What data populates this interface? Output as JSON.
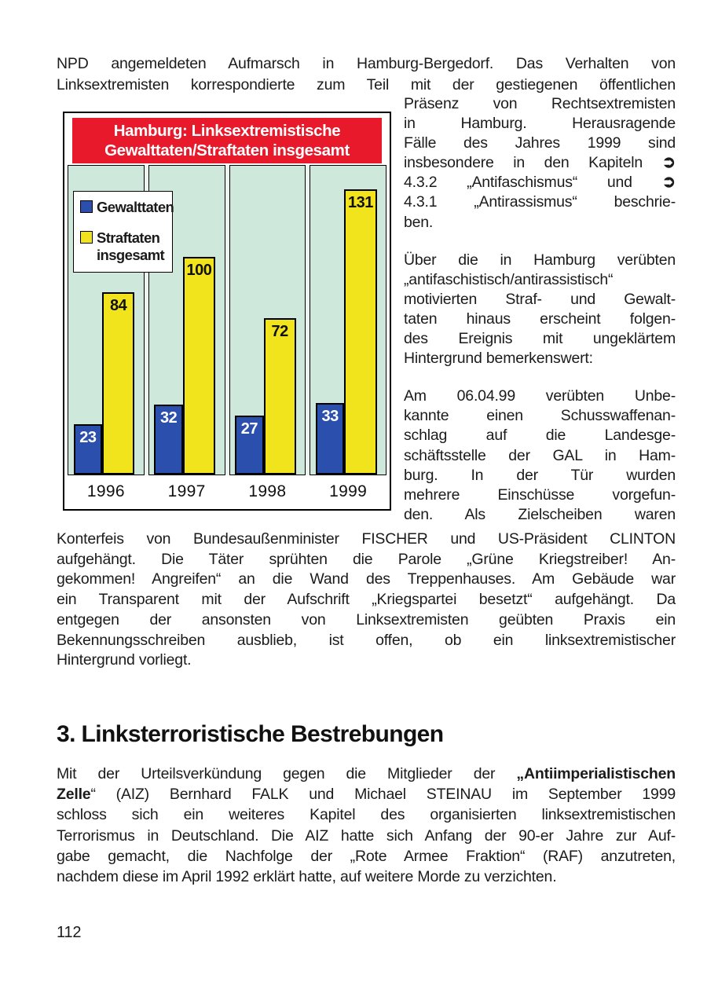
{
  "page": {
    "number": "112"
  },
  "intro": {
    "justify_last": true,
    "lines": [
      "NPD angemeldeten Aufmarsch in Hamburg-Bergedorf. Das Verhalten von",
      "Linksextremisten korrespondierte zum Teil mit der gestiegenen öffentlichen"
    ]
  },
  "right_column": {
    "paragraphs": [
      {
        "justify_last": false,
        "lines": [
          "Präsenz von Rechtsextremisten",
          "in Hamburg. Herausragende",
          "Fälle des Jahres 1999 sind",
          [
            {
              "t": "insbesondere in den Kapiteln "
            },
            {
              "t": "➲",
              "cls": "xref"
            }
          ],
          [
            {
              "t": "4.3.2 „Antifaschismus“ und "
            },
            {
              "t": "➲",
              "cls": "xref"
            }
          ],
          "4.3.1 „Antirassismus“ beschrie-",
          "ben."
        ]
      },
      {
        "justify_last": false,
        "lines": [
          "Über die in Hamburg verübten",
          "„antifaschistisch/antirassistisch“",
          "motivierten Straf- und Gewalt-",
          "taten hinaus erscheint folgen-",
          "des Ereignis mit ungeklärtem",
          "Hintergrund bemerkenswert:"
        ]
      },
      {
        "justify_last": true,
        "lines": [
          "Am 06.04.99 verübten Unbe-",
          "kannte einen Schusswaffenan-",
          "schlag auf die Landesge-",
          "schäftsstelle der GAL in Ham-",
          "burg. In der Tür wurden",
          "mehrere Einschüsse vorgefun-",
          "den. Als Zielscheiben waren"
        ]
      }
    ]
  },
  "continuation": {
    "justify_last": false,
    "lines": [
      "Konterfeis von Bundesaußenminister FISCHER und US-Präsident CLINTON",
      "aufgehängt. Die Täter sprühten die Parole „Grüne Kriegstreiber! An-",
      "gekommen! Angreifen“ an die Wand des Treppenhauses. Am Gebäude war",
      "ein Transparent mit der Aufschrift „Kriegspartei besetzt“ aufgehängt. Da",
      "entgegen der ansonsten von Linksextremisten geübten Praxis ein",
      "Bekennungsschreiben ausblieb, ist offen, ob ein linksextremistischer",
      "Hintergrund vorliegt."
    ]
  },
  "section": {
    "heading": "3. Linksterroristische Bestrebungen"
  },
  "aiz_paragraph": {
    "justify_last": false,
    "lines": [
      [
        {
          "t": "Mit der Urteilsverkündung gegen die Mitglieder der "
        },
        {
          "t": "„Antiimperialistischen",
          "cls": "b"
        }
      ],
      [
        {
          "t": "Zelle",
          "cls": "b"
        },
        {
          "t": "“ (AIZ) Bernhard FALK und Michael STEINAU im September 1999"
        }
      ],
      "schloss sich ein weiteres Kapitel des organisierten linksextremistischen",
      "Terrorismus in Deutschland. Die AIZ hatte sich Anfang der 90-er Jahre zur Auf-",
      "gabe gemacht, die Nachfolge der „Rote Armee Fraktion“ (RAF) anzutreten,",
      "nachdem diese im April 1992 erklärt hatte, auf weitere Morde zu verzichten."
    ]
  },
  "icons": {
    "xref_arrow": "➲"
  },
  "chart_data": {
    "type": "bar",
    "title": "Hamburg: Linksextremistische Gewalttaten/Straftaten insgesamt",
    "title_lines": [
      "Hamburg: Linksextremistische",
      "Gewalttaten/Straftaten insgesamt"
    ],
    "categories": [
      "1996",
      "1997",
      "1998",
      "1999"
    ],
    "series": [
      {
        "name": "Gewalttaten",
        "values": [
          23,
          32,
          27,
          33
        ],
        "color": "#2b4fad",
        "label_color": "#ffffff"
      },
      {
        "name": "Straftaten insgesamt",
        "values": [
          84,
          100,
          72,
          131
        ],
        "color": "#f2e41c",
        "label_color": "#111111"
      }
    ],
    "legend": {
      "position": "top-left",
      "items": [
        {
          "label_lines": [
            "Gewalttaten"
          ],
          "color": "#2b4fad"
        },
        {
          "label_lines": [
            "Straftaten",
            "insgesamt"
          ],
          "color": "#f2e41c"
        }
      ]
    },
    "ylim": [
      0,
      142
    ],
    "grid": false,
    "banner_color": "#e8192b",
    "plot_bg": "#cfe8dc"
  }
}
